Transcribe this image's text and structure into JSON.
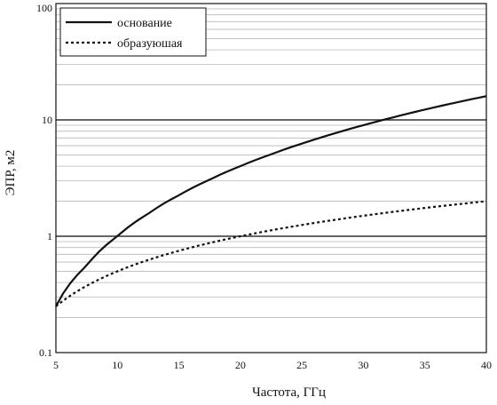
{
  "chart_data": {
    "type": "line",
    "title": "",
    "xlabel": "Частота, ГГц",
    "ylabel": "ЭПР, м2",
    "xscale": "linear",
    "yscale": "log",
    "xlim": [
      5,
      40
    ],
    "ylim": [
      0.1,
      100
    ],
    "x_ticks": [
      "5",
      "10",
      "15",
      "20",
      "25",
      "30",
      "35",
      "40"
    ],
    "y_ticks": [
      "0.1",
      "1",
      "10",
      "100"
    ],
    "grid": "on",
    "legend": {
      "position": "top-left",
      "bordered": true
    },
    "x": [
      5,
      7.5,
      10,
      12.5,
      15,
      17.5,
      20,
      22.5,
      25,
      27.5,
      30,
      32.5,
      35,
      37.5,
      40
    ],
    "series": [
      {
        "name": "основание",
        "style": "solid",
        "values": [
          0.25,
          0.56,
          1.0,
          1.56,
          2.25,
          3.06,
          4.0,
          5.06,
          6.25,
          7.56,
          9.0,
          10.56,
          12.25,
          14.06,
          16.0
        ]
      },
      {
        "name": "образуюшая",
        "style": "dotted",
        "values": [
          0.25,
          0.375,
          0.5,
          0.625,
          0.75,
          0.875,
          1.0,
          1.125,
          1.25,
          1.375,
          1.5,
          1.625,
          1.75,
          1.875,
          2.0
        ]
      }
    ],
    "colors": {
      "line": "#111111",
      "grid_major": "#333333",
      "grid_minor": "#b8b8b8"
    }
  }
}
